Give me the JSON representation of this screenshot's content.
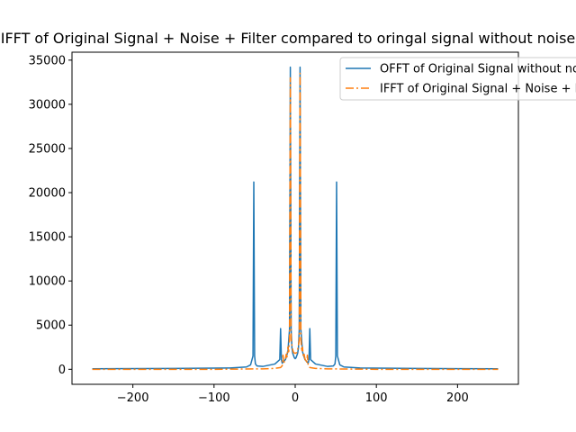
{
  "chart_data": {
    "type": "line",
    "title": "IFFT of Original Signal + Noise + Filter compared to oringal signal without noise",
    "xlabel": "",
    "ylabel": "",
    "xlim": [
      -275,
      275
    ],
    "ylim": [
      -1700,
      35900
    ],
    "xticks": [
      -200,
      -100,
      0,
      100,
      200
    ],
    "xtick_labels": [
      "−200",
      "−100",
      "0",
      "100",
      "200"
    ],
    "yticks": [
      0,
      5000,
      10000,
      15000,
      20000,
      25000,
      30000,
      35000
    ],
    "ytick_labels": [
      "0",
      "5000",
      "10000",
      "15000",
      "20000",
      "25000",
      "30000",
      "35000"
    ],
    "grid": false,
    "legend_position": "top-right",
    "series": [
      {
        "name": "OFFT of Original Signal without noise",
        "color": "#1f77b4",
        "style": "solid",
        "x": [
          -250,
          -150,
          -80,
          -60,
          -55,
          -52,
          -51,
          -50,
          -49,
          -47,
          -40,
          -25,
          -19,
          -18,
          -17,
          -16,
          -15,
          -12,
          -9,
          -7,
          -6,
          -5,
          -4,
          -3,
          -1,
          0,
          1,
          3,
          4,
          5,
          6,
          7,
          9,
          12,
          15,
          16,
          17,
          18,
          19,
          25,
          40,
          47,
          49,
          50,
          51,
          52,
          55,
          60,
          80,
          150,
          250
        ],
        "y": [
          60,
          90,
          150,
          260,
          500,
          1500,
          21200,
          1500,
          600,
          380,
          320,
          600,
          1100,
          4600,
          1100,
          700,
          800,
          1100,
          2000,
          4500,
          34200,
          4500,
          2400,
          1800,
          1300,
          1200,
          1300,
          1800,
          2400,
          4500,
          34200,
          4500,
          2000,
          1100,
          800,
          700,
          1100,
          4600,
          1100,
          600,
          320,
          380,
          600,
          1500,
          21200,
          1500,
          500,
          260,
          150,
          90,
          60
        ]
      },
      {
        "name": "IFFT of Original Signal + Noise + Filter",
        "color": "#ff7f0e",
        "style": "dashdot",
        "x": [
          -250,
          -200,
          -100,
          -40,
          -25,
          -18,
          -16,
          -15,
          -14,
          -13,
          -12,
          -11,
          -10,
          -9,
          -8,
          -7,
          -6,
          -5,
          -4,
          -3,
          -2,
          0,
          2,
          3,
          4,
          5,
          6,
          7,
          8,
          9,
          10,
          11,
          12,
          13,
          14,
          15,
          16,
          18,
          25,
          40,
          100,
          200,
          250
        ],
        "y": [
          0,
          0,
          0,
          50,
          100,
          200,
          400,
          1600,
          700,
          1000,
          1200,
          1700,
          1400,
          2500,
          2000,
          3500,
          33000,
          3300,
          2700,
          2200,
          1900,
          1800,
          1900,
          2200,
          2700,
          3300,
          33500,
          3500,
          2000,
          2500,
          1400,
          1700,
          1200,
          1000,
          700,
          1600,
          400,
          200,
          100,
          50,
          0,
          0,
          0
        ]
      }
    ]
  }
}
